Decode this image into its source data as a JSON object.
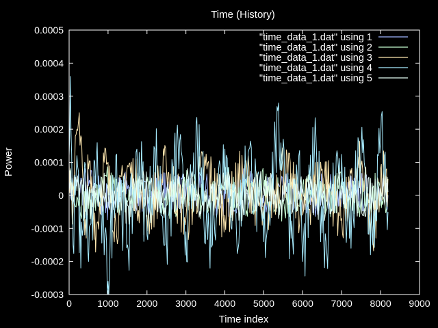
{
  "chart_data": {
    "type": "line",
    "title": "Time  (History)",
    "xlabel": "Time index",
    "ylabel": "Power",
    "xlim": [
      0,
      9000
    ],
    "ylim": [
      -0.0003,
      0.0005
    ],
    "x_ticks": [
      0,
      1000,
      2000,
      3000,
      4000,
      5000,
      6000,
      7000,
      8000,
      9000
    ],
    "x_tick_labels": [
      "0",
      "1000",
      "2000",
      "3000",
      "4000",
      "5000",
      "6000",
      "7000",
      "8000",
      "9000"
    ],
    "y_ticks": [
      -0.0003,
      -0.0002,
      -0.0001,
      0,
      0.0001,
      0.0002,
      0.0003,
      0.0004,
      0.0005
    ],
    "y_tick_labels": [
      "-0.0003",
      "-0.0002",
      "-0.0001",
      "0",
      "0.0001",
      "0.0002",
      "0.0003",
      "0.0004",
      "0.0005"
    ],
    "legend_position": "top-right",
    "grid": false,
    "colors": {
      "background": "#000000",
      "foreground": "#ffffff"
    },
    "series": [
      {
        "name": "\"time_data_1.dat\" using 1",
        "color": "#9fb6ff",
        "x": [
          0,
          500,
          1000,
          1500,
          2000,
          2500,
          3000,
          3500,
          4000,
          4500,
          5000,
          5500,
          6000,
          6500,
          7000,
          7500,
          8000,
          8190
        ],
        "values": [
          2e-05,
          3e-05,
          -2e-05,
          2e-05,
          -1e-05,
          2e-05,
          0.0,
          1e-05,
          -1e-05,
          2e-05,
          0.0,
          1e-05,
          -2e-05,
          1e-05,
          0.0,
          1e-05,
          -1e-05,
          0.0
        ]
      },
      {
        "name": "\"time_data_1.dat\" using 2",
        "color": "#c8ffd4",
        "x": [
          0,
          500,
          1000,
          1500,
          2000,
          2500,
          3000,
          3500,
          4000,
          4500,
          5000,
          5500,
          6000,
          6500,
          7000,
          7500,
          8000,
          8190
        ],
        "values": [
          5e-05,
          -4e-05,
          3e-05,
          -2e-05,
          4e-05,
          -3e-05,
          2e-05,
          -2e-05,
          3e-05,
          -1e-05,
          2e-05,
          -2e-05,
          3e-05,
          -2e-05,
          2e-05,
          -1e-05,
          2e-05,
          0.0
        ]
      },
      {
        "name": "\"time_data_1.dat\" using 3",
        "color": "#ffe8b0",
        "x": [
          0,
          100,
          200,
          260,
          300,
          400,
          500,
          700,
          900,
          1200,
          1500,
          2000,
          2500,
          3000,
          3500,
          4000,
          4500,
          5000,
          5500,
          6000,
          6500,
          7000,
          7500,
          7800,
          8000,
          8190
        ],
        "values": [
          0.0001,
          -5e-05,
          0.0002,
          0.00025,
          0.00018,
          -0.00012,
          8e-05,
          -0.0001,
          0.0001,
          -8e-05,
          9e-05,
          -6e-05,
          8e-05,
          -7e-05,
          9e-05,
          -6e-05,
          8e-05,
          -7e-05,
          9e-05,
          -6e-05,
          8e-05,
          -7e-05,
          9e-05,
          -0.00014,
          8e-05,
          5e-05
        ]
      },
      {
        "name": "\"time_data_1.dat\" using 4",
        "color": "#a8ecff",
        "x": [
          0,
          30,
          100,
          200,
          300,
          400,
          500,
          700,
          900,
          1000,
          1200,
          1500,
          1800,
          2000,
          2200,
          2500,
          2800,
          3000,
          3300,
          3600,
          4000,
          4300,
          4600,
          5000,
          5300,
          5500,
          5700,
          5900,
          6000,
          6300,
          6600,
          6900,
          7200,
          7500,
          7800,
          8000,
          8100,
          8190
        ],
        "values": [
          0.00012,
          0.00036,
          -0.00015,
          0.00012,
          -0.00022,
          0.0001,
          -0.0002,
          0.00011,
          -0.00018,
          -0.00026,
          0.00012,
          -0.00015,
          0.00013,
          -0.00012,
          0.00014,
          -0.00013,
          0.00015,
          -0.00011,
          0.00013,
          -0.00012,
          0.00014,
          -0.00012,
          0.00013,
          -0.00014,
          0.00015,
          0.00017,
          -0.00013,
          0.00012,
          -0.0002,
          0.00013,
          -0.00014,
          0.00012,
          -0.00013,
          0.00014,
          -0.00015,
          0.00016,
          0.00012,
          -5e-05
        ]
      },
      {
        "name": "\"time_data_1.dat\" using 5",
        "color": "#e6fff6",
        "x": [
          0,
          500,
          1000,
          1500,
          2000,
          2500,
          3000,
          3500,
          4000,
          4500,
          5000,
          5500,
          6000,
          6500,
          7000,
          7500,
          8000,
          8190
        ],
        "values": [
          4e-05,
          -3e-05,
          2e-05,
          -3e-05,
          3e-05,
          -2e-05,
          3e-05,
          -2e-05,
          2e-05,
          -3e-05,
          3e-05,
          -2e-05,
          2e-05,
          -3e-05,
          3e-05,
          -2e-05,
          2e-05,
          1e-05
        ]
      }
    ]
  }
}
